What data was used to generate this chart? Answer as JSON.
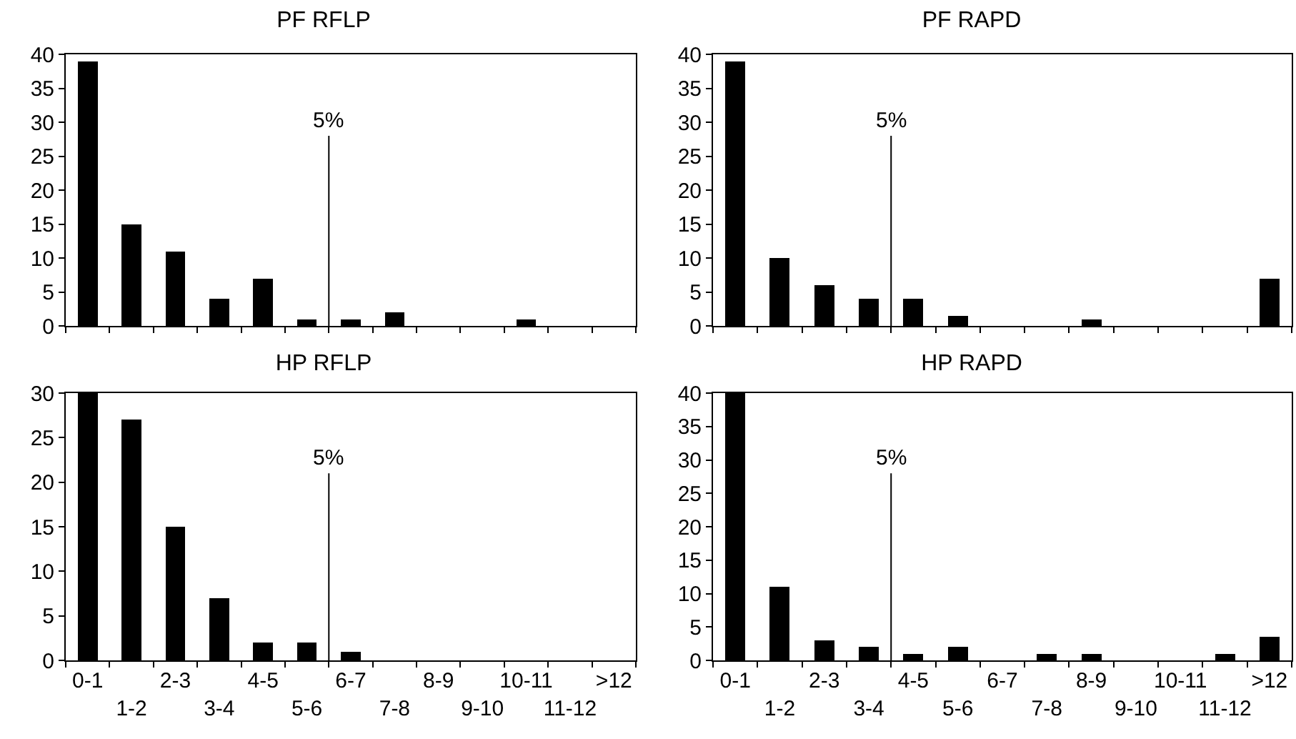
{
  "chart_data": [
    {
      "type": "bar",
      "title": "PF RFLP",
      "categories": [
        "0-1",
        "1-2",
        "2-3",
        "3-4",
        "4-5",
        "5-6",
        "6-7",
        "7-8",
        "8-9",
        "9-10",
        "10-11",
        "11-12",
        ">12"
      ],
      "values": [
        39,
        15,
        11,
        4,
        7,
        1,
        1,
        2,
        0,
        0,
        1,
        0,
        0
      ],
      "color": "#000000",
      "ylim": [
        0,
        40
      ],
      "yticks": [
        0,
        5,
        10,
        15,
        20,
        25,
        30,
        35,
        40
      ],
      "tick_labels": "y",
      "grid": false,
      "legend": false,
      "ref_lines": [
        {
          "axis": "x",
          "value": "5-6",
          "label": "5%",
          "color": "#000000"
        }
      ]
    },
    {
      "type": "bar",
      "title": "PF RAPD",
      "categories": [
        "0-1",
        "1-2",
        "2-3",
        "3-4",
        "4-5",
        "5-6",
        "6-7",
        "7-8",
        "8-9",
        "9-10",
        "10-11",
        "11-12",
        ">12"
      ],
      "values": [
        39,
        10,
        6,
        4,
        4,
        1.5,
        0,
        0,
        1,
        0,
        0,
        0,
        7
      ],
      "color": "#000000",
      "ylim": [
        0,
        40
      ],
      "yticks": [
        0,
        5,
        10,
        15,
        20,
        25,
        30,
        35,
        40
      ],
      "tick_labels": "y",
      "grid": false,
      "legend": false,
      "ref_lines": [
        {
          "axis": "x",
          "value": "3-4",
          "label": "5%",
          "color": "#000000"
        }
      ]
    },
    {
      "type": "bar",
      "title": "HP RFLP",
      "categories": [
        "0-1",
        "1-2",
        "2-3",
        "3-4",
        "4-5",
        "5-6",
        "6-7",
        "7-8",
        "8-9",
        "9-10",
        "10-11",
        "11-12",
        ">12"
      ],
      "values": [
        30,
        27,
        15,
        7,
        2,
        2,
        1,
        0,
        0,
        0,
        0,
        0,
        0
      ],
      "color": "#000000",
      "ylim": [
        0,
        30
      ],
      "yticks": [
        0,
        5,
        10,
        15,
        20,
        25,
        30
      ],
      "grid": false,
      "legend": false,
      "ref_lines": [
        {
          "axis": "x",
          "value": "5-6",
          "label": "5%",
          "color": "#000000"
        }
      ]
    },
    {
      "type": "bar",
      "title": "HP RAPD",
      "categories": [
        "0-1",
        "1-2",
        "2-3",
        "3-4",
        "4-5",
        "5-6",
        "6-7",
        "7-8",
        "8-9",
        "9-10",
        "10-11",
        "11-12",
        ">12"
      ],
      "values": [
        40,
        11,
        3,
        2,
        1,
        2,
        0,
        1,
        1,
        0,
        0,
        1,
        3.5
      ],
      "color": "#000000",
      "ylim": [
        0,
        40
      ],
      "yticks": [
        0,
        5,
        10,
        15,
        20,
        25,
        30,
        35,
        40
      ],
      "grid": false,
      "legend": false,
      "ref_lines": [
        {
          "axis": "x",
          "value": "3-4",
          "label": "5%",
          "color": "#000000"
        }
      ]
    }
  ]
}
